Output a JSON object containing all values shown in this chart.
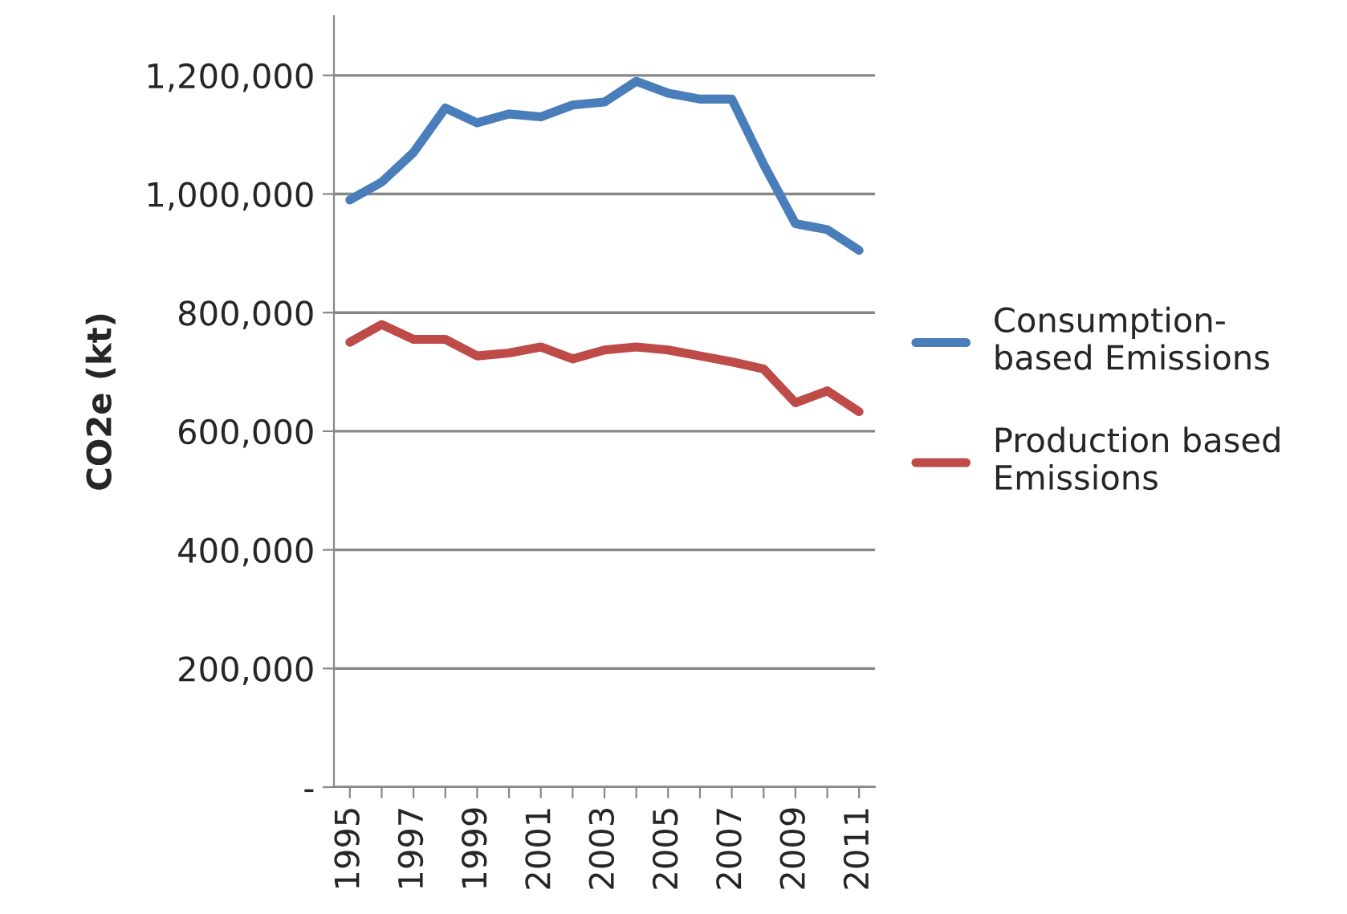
{
  "chart_data": {
    "type": "line",
    "ylabel": "CO2e (kt)",
    "categories": [
      "1995",
      null,
      "1997",
      null,
      "1999",
      null,
      "2001",
      null,
      "2003",
      null,
      "2005",
      null,
      "2007",
      null,
      "2009",
      null,
      "2011"
    ],
    "series": [
      {
        "name": "Consumption-\nbased Emissions",
        "color": "#4a7ebb",
        "values": [
          990000,
          1020000,
          1070000,
          1145000,
          1120000,
          1135000,
          1130000,
          1150000,
          1155000,
          1190000,
          1170000,
          1160000,
          1160000,
          1050000,
          950000,
          940000,
          905000
        ]
      },
      {
        "name": "Production based\nEmissions",
        "color": "#be4b48",
        "values": [
          750000,
          780000,
          755000,
          755000,
          727000,
          732000,
          742000,
          722000,
          737000,
          742000,
          737000,
          727000,
          717000,
          705000,
          648000,
          668000,
          633000
        ]
      }
    ],
    "ylim": [
      0,
      1300000
    ],
    "yticks": [
      {
        "value": 0,
        "label": "-"
      },
      {
        "value": 200000,
        "label": "200,000"
      },
      {
        "value": 400000,
        "label": "400,000"
      },
      {
        "value": 600000,
        "label": "600,000"
      },
      {
        "value": 800000,
        "label": "800,000"
      },
      {
        "value": 1000000,
        "label": "1,000,000"
      },
      {
        "value": 1200000,
        "label": "1,200,000"
      }
    ],
    "grid": "y",
    "legend": "right",
    "marker": "none",
    "line_style": "solid"
  }
}
